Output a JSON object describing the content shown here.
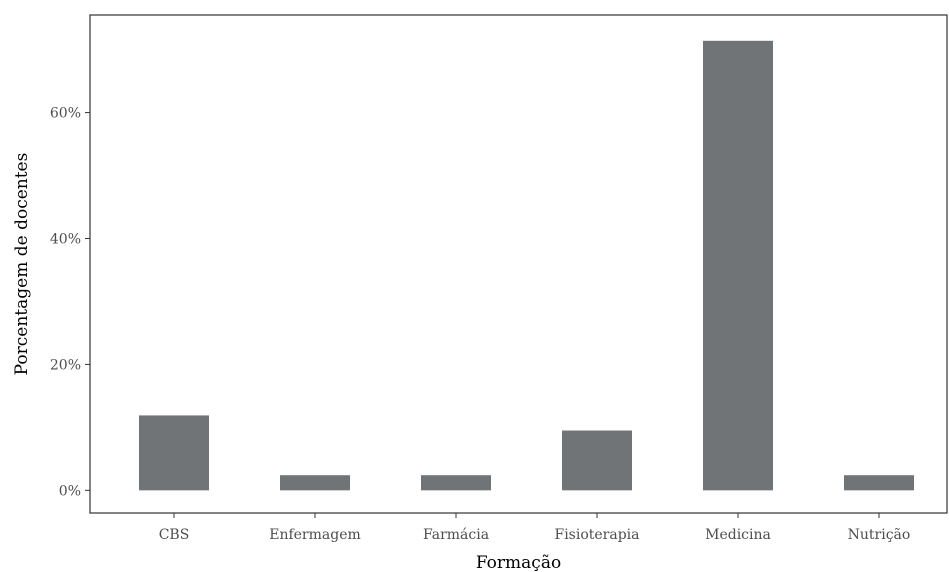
{
  "chart_data": {
    "type": "bar",
    "categories": [
      "CBS",
      "Enfermagem",
      "Farmácia",
      "Fisioterapia",
      "Medicina",
      "Nutrição"
    ],
    "values": [
      11.9,
      2.4,
      2.4,
      9.5,
      71.4,
      2.4
    ],
    "xlabel": "Formação",
    "ylabel": "Porcentagem de docentes",
    "ylim": [
      -3.6,
      75.5
    ],
    "yticks": [
      0,
      20,
      40,
      60
    ],
    "ytick_labels": [
      "0%",
      "20%",
      "40%",
      "60%"
    ],
    "grid": false,
    "bar_color": "#717476"
  }
}
